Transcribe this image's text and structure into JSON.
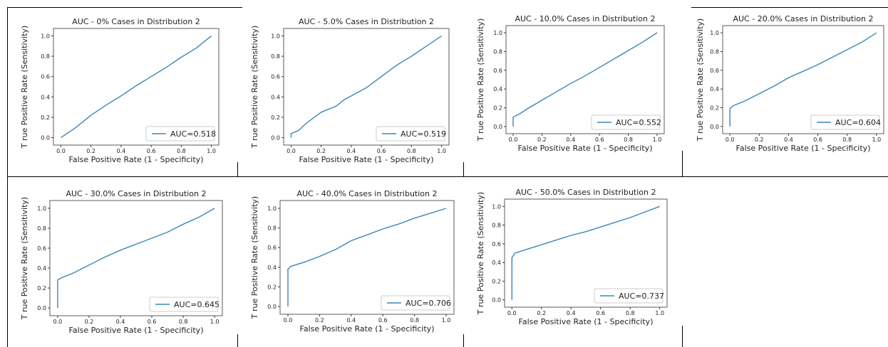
{
  "style": {
    "line_color": "#3a86b8",
    "axis_color": "#333333",
    "legend_border": "#cccccc"
  },
  "chart_data": [
    {
      "type": "line",
      "title": "AUC - 0% Cases in Distribution 2",
      "xlabel": "False Positive Rate (1 - Specificity)",
      "ylabel": "T rue Positive Rate (Sensitivity)",
      "xlim": [
        0,
        1
      ],
      "ylim": [
        0,
        1
      ],
      "xticks": [
        "0.0",
        "0.2",
        "0.4",
        "0.6",
        "0.8",
        "1.0"
      ],
      "yticks": [
        "0.0",
        "0.2",
        "0.4",
        "0.6",
        "0.8",
        "1.0"
      ],
      "legend": "AUC=0.518",
      "legend_loc": "lower-right",
      "grid": false,
      "series": [
        {
          "x": [
            0,
            0.05,
            0.1,
            0.2,
            0.3,
            0.4,
            0.5,
            0.6,
            0.7,
            0.8,
            0.9,
            1.0
          ],
          "y": [
            0,
            0.05,
            0.1,
            0.22,
            0.32,
            0.41,
            0.51,
            0.6,
            0.69,
            0.79,
            0.88,
            1.0
          ]
        }
      ]
    },
    {
      "type": "line",
      "title": "AUC - 5.0% Cases in Distribution 2",
      "xlabel": "False Positive Rate (1 - Specificity)",
      "ylabel": "T rue Positive Rate (Sensitivity)",
      "xlim": [
        0,
        1
      ],
      "ylim": [
        0,
        1
      ],
      "xticks": [
        "0.0",
        "0.2",
        "0.4",
        "0.6",
        "0.8",
        "1.0"
      ],
      "yticks": [
        "0.0",
        "0.2",
        "0.4",
        "0.6",
        "0.8",
        "1.0"
      ],
      "legend": "AUC=0.519",
      "legend_loc": "lower-right",
      "grid": false,
      "series": [
        {
          "x": [
            0,
            0,
            0.05,
            0.1,
            0.2,
            0.3,
            0.35,
            0.4,
            0.5,
            0.6,
            0.7,
            0.8,
            0.9,
            1.0
          ],
          "y": [
            0,
            0.04,
            0.07,
            0.14,
            0.25,
            0.31,
            0.37,
            0.41,
            0.49,
            0.6,
            0.71,
            0.8,
            0.9,
            1.0
          ]
        }
      ]
    },
    {
      "type": "line",
      "title": "AUC - 10.0% Cases in Distribution 2",
      "xlabel": "False Positive Rate (1 - Specificity)",
      "ylabel": "T rue Positive Rate (Sensitivity)",
      "xlim": [
        0,
        1
      ],
      "ylim": [
        0,
        1
      ],
      "xticks": [
        "0.0",
        "0.2",
        "0.4",
        "0.6",
        "0.8",
        "1.0"
      ],
      "yticks": [
        "0.0",
        "0.2",
        "0.4",
        "0.6",
        "0.8",
        "1.0"
      ],
      "legend": "AUC=0.552",
      "legend_loc": "lower-right",
      "grid": false,
      "series": [
        {
          "x": [
            0,
            0,
            0.05,
            0.1,
            0.2,
            0.3,
            0.4,
            0.5,
            0.6,
            0.7,
            0.8,
            0.9,
            1.0
          ],
          "y": [
            0,
            0.1,
            0.14,
            0.19,
            0.28,
            0.37,
            0.46,
            0.54,
            0.63,
            0.72,
            0.81,
            0.9,
            1.0
          ]
        }
      ]
    },
    {
      "type": "line",
      "title": "AUC - 20.0% Cases in Distribution 2",
      "xlabel": "False Positive Rate (1 - Specificity)",
      "ylabel": "T rue Positive Rate (Sensitivity)",
      "xlim": [
        0,
        1
      ],
      "ylim": [
        0,
        1
      ],
      "xticks": [
        "0.0",
        "0.2",
        "0.4",
        "0.6",
        "0.8",
        "1.0"
      ],
      "yticks": [
        "0.0",
        "0.2",
        "0.4",
        "0.6",
        "0.8",
        "1.0"
      ],
      "legend": "AUC=0.604",
      "legend_loc": "lower-right",
      "grid": false,
      "series": [
        {
          "x": [
            0,
            0,
            0.02,
            0.1,
            0.2,
            0.3,
            0.4,
            0.5,
            0.6,
            0.7,
            0.8,
            0.9,
            1.0
          ],
          "y": [
            0,
            0.19,
            0.22,
            0.27,
            0.35,
            0.43,
            0.52,
            0.59,
            0.66,
            0.74,
            0.82,
            0.9,
            1.0
          ]
        }
      ]
    },
    {
      "type": "line",
      "title": "AUC - 30.0% Cases in Distribution 2",
      "xlabel": "False Positive Rate (1 - Specificity)",
      "ylabel": "T rue Positive Rate (Sensitivity)",
      "xlim": [
        0,
        1
      ],
      "ylim": [
        0,
        1
      ],
      "xticks": [
        "0.0",
        "0.2",
        "0.4",
        "0.6",
        "0.8",
        "1.0"
      ],
      "yticks": [
        "0.0",
        "0.2",
        "0.4",
        "0.6",
        "0.8",
        "1.0"
      ],
      "legend": "AUC=0.645",
      "legend_loc": "lower-right",
      "grid": false,
      "series": [
        {
          "x": [
            0,
            0,
            0.02,
            0.1,
            0.2,
            0.3,
            0.4,
            0.5,
            0.6,
            0.7,
            0.8,
            0.9,
            1.0
          ],
          "y": [
            0,
            0.28,
            0.3,
            0.35,
            0.43,
            0.51,
            0.58,
            0.64,
            0.7,
            0.76,
            0.84,
            0.91,
            1.0
          ]
        }
      ]
    },
    {
      "type": "line",
      "title": "AUC - 40.0% Cases in Distribution 2",
      "xlabel": "False Positive Rate (1 - Specificity)",
      "ylabel": "T rue Positive Rate (Sensitivity)",
      "xlim": [
        0,
        1
      ],
      "ylim": [
        0,
        1
      ],
      "xticks": [
        "0.0",
        "0.2",
        "0.4",
        "0.6",
        "0.8",
        "1.0"
      ],
      "yticks": [
        "0.0",
        "0.2",
        "0.4",
        "0.6",
        "0.8",
        "1.0"
      ],
      "legend": "AUC=0.706",
      "legend_loc": "lower-right",
      "grid": false,
      "series": [
        {
          "x": [
            0,
            0,
            0.02,
            0.1,
            0.2,
            0.3,
            0.4,
            0.5,
            0.6,
            0.7,
            0.8,
            0.9,
            1.0
          ],
          "y": [
            0,
            0.38,
            0.41,
            0.45,
            0.51,
            0.58,
            0.67,
            0.73,
            0.79,
            0.84,
            0.9,
            0.95,
            1.0
          ]
        }
      ]
    },
    {
      "type": "line",
      "title": "AUC - 50.0% Cases in Distribution 2",
      "xlabel": "False Positive Rate (1 - Specificity)",
      "ylabel": "T rue Positive Rate (Sensitivity)",
      "xlim": [
        0,
        1
      ],
      "ylim": [
        0,
        1
      ],
      "xticks": [
        "0.0",
        "0.2",
        "0.4",
        "0.6",
        "0.8",
        "1.0"
      ],
      "yticks": [
        "0.0",
        "0.2",
        "0.4",
        "0.6",
        "0.8",
        "1.0"
      ],
      "legend": "AUC=0.737",
      "legend_loc": "lower-right",
      "grid": false,
      "series": [
        {
          "x": [
            0,
            0,
            0.02,
            0.1,
            0.2,
            0.3,
            0.4,
            0.5,
            0.6,
            0.7,
            0.8,
            0.9,
            1.0
          ],
          "y": [
            0,
            0.45,
            0.5,
            0.54,
            0.59,
            0.64,
            0.69,
            0.73,
            0.78,
            0.83,
            0.88,
            0.94,
            1.0
          ]
        }
      ]
    }
  ]
}
